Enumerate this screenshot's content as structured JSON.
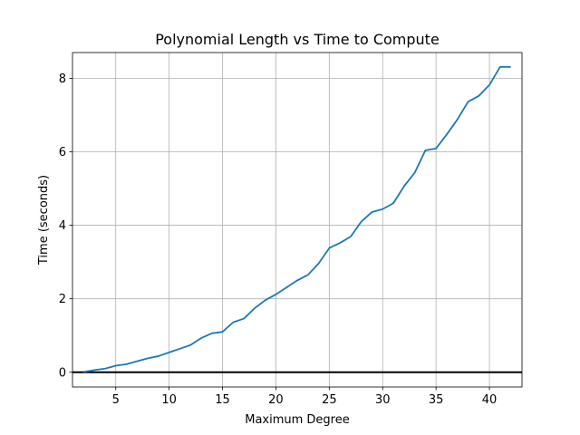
{
  "chart_data": {
    "type": "line",
    "title": "Polynomial Length vs Time to Compute",
    "xlabel": "Maximum Degree",
    "ylabel": "Time (seconds)",
    "xlim": [
      0.95,
      43.05
    ],
    "ylim": [
      -0.4,
      8.7
    ],
    "xticks": [
      5,
      10,
      15,
      20,
      25,
      30,
      35,
      40
    ],
    "yticks": [
      0,
      2,
      4,
      6,
      8
    ],
    "grid": true,
    "hline": 0,
    "series": [
      {
        "color": "#1f77b4",
        "x": [
          2,
          3,
          4,
          5,
          6,
          7,
          8,
          9,
          10,
          11,
          12,
          13,
          14,
          15,
          16,
          17,
          18,
          19,
          20,
          21,
          22,
          23,
          24,
          25,
          26,
          27,
          28,
          29,
          30,
          31,
          32,
          33,
          34,
          35,
          36,
          37,
          38,
          39,
          40,
          41,
          42
        ],
        "y": [
          0.01,
          0.06,
          0.1,
          0.18,
          0.22,
          0.3,
          0.38,
          0.44,
          0.54,
          0.64,
          0.74,
          0.93,
          1.06,
          1.1,
          1.36,
          1.46,
          1.74,
          1.96,
          2.12,
          2.31,
          2.5,
          2.65,
          2.96,
          3.38,
          3.52,
          3.69,
          4.1,
          4.36,
          4.44,
          4.6,
          5.06,
          5.43,
          6.04,
          6.09,
          6.47,
          6.88,
          7.36,
          7.52,
          7.82,
          8.31,
          8.31
        ]
      }
    ]
  }
}
